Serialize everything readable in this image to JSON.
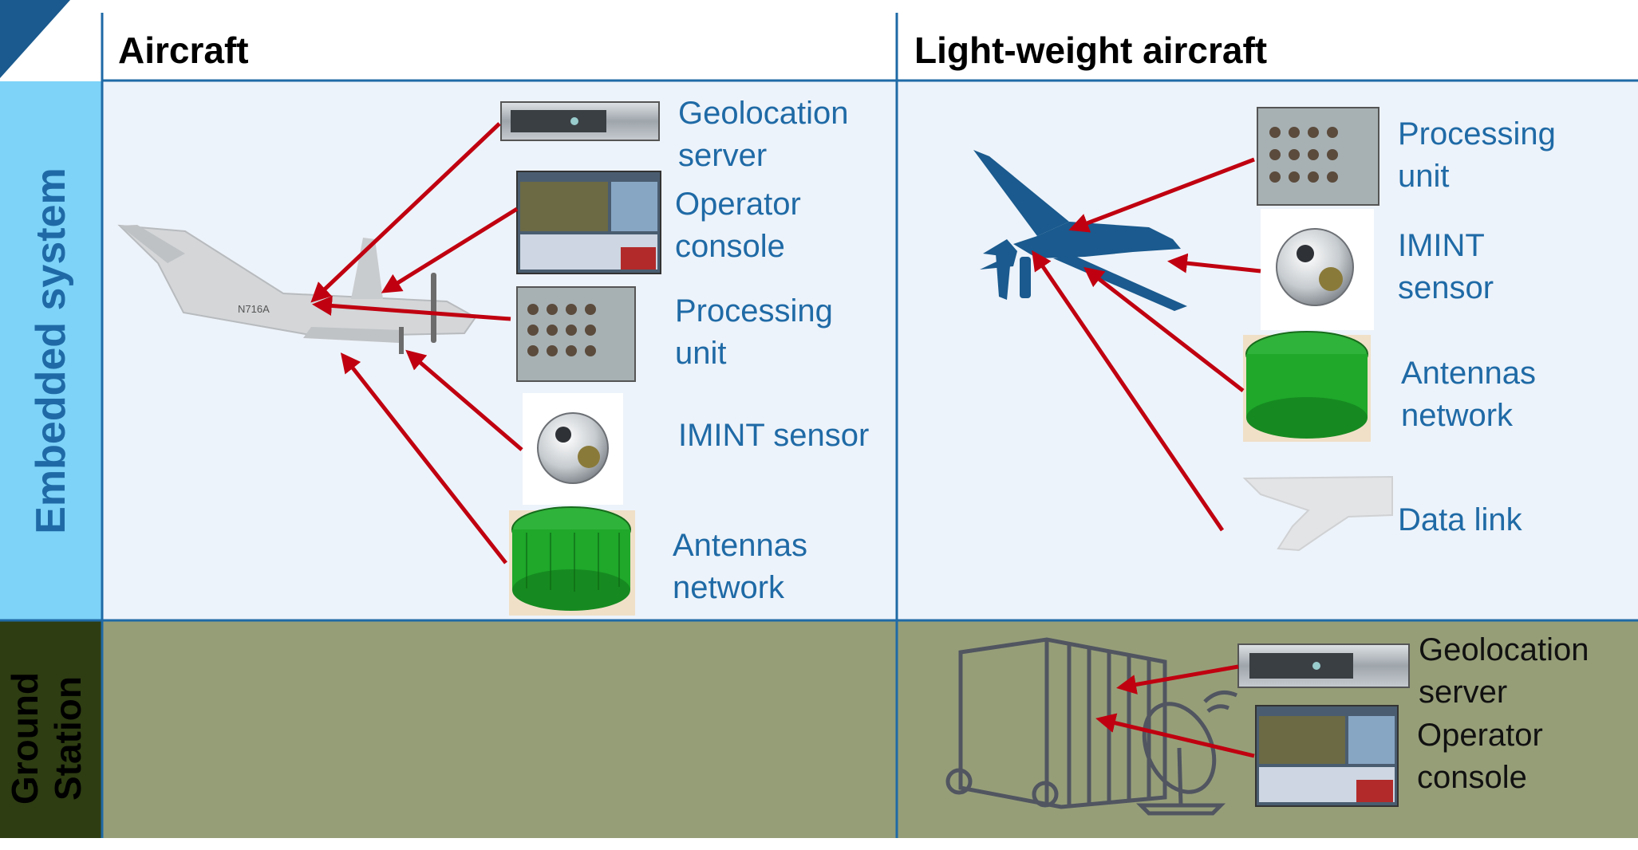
{
  "headers": {
    "col1": "Aircraft",
    "col2": "Light-weight aircraft"
  },
  "rows": {
    "embedded": "Embedded system",
    "ground": "Ground\nStation"
  },
  "aircraft_labels": {
    "geolocation": "Geolocation\nserver",
    "operator": "Operator\nconsole",
    "processing": "Processing\nunit",
    "imint": "IMINT sensor",
    "antennas": "Antennas\nnetwork"
  },
  "aircraft_tail_number": "N716A",
  "light_labels": {
    "processing": "Processing\nunit",
    "imint": "IMINT\nsensor",
    "antennas": "Antennas\nnetwork",
    "datalink": "Data link"
  },
  "ground_labels": {
    "geolocation": "Geolocation\nserver",
    "operator": "Operator\nconsole"
  },
  "colors": {
    "header_band": "#ffffff",
    "embedded_side": "#7dd3f8",
    "embedded_bg": "#edf3fa",
    "ground_side": "#2e3d12",
    "ground_bg": "#969e78",
    "grid_lines": "#1f6aa6",
    "arrow": "#c00010",
    "label_blue": "#1f6aa6",
    "drone": "#1a5a8e",
    "antenna_green": "#1fa82a"
  }
}
